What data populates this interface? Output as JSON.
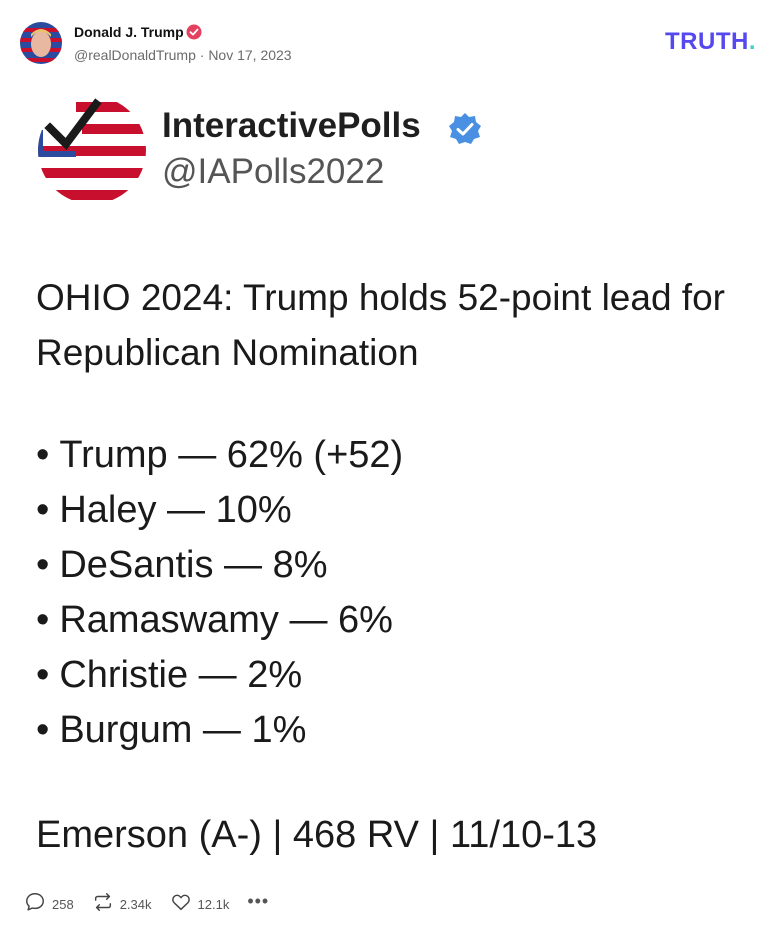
{
  "post": {
    "author_name": "Donald J. Trump",
    "handle": "@realDonaldTrump",
    "separator": "·",
    "date": "Nov 17, 2023",
    "brand": "TRUTH",
    "brand_dot": "."
  },
  "embedded": {
    "account_name": "InteractivePolls",
    "account_handle": "@IAPolls2022",
    "headline": "OHIO 2024: Trump holds 52-point lead for Republican Nomination",
    "results": [
      "Trump — 62% (+52)",
      "Haley — 10%",
      "DeSantis — 8%",
      "Ramaswamy — 6%",
      "Christie — 2%",
      "Burgum — 1%"
    ],
    "source": "Emerson (A-) | 468 RV | 11/10-13"
  },
  "actions": {
    "replies": "258",
    "retruths": "2.34k",
    "likes": "12.1k",
    "more": "•••"
  },
  "icons": {
    "verified": "verified-badge-icon",
    "reply": "reply-icon",
    "retruth": "retruth-icon",
    "like": "heart-icon",
    "more": "more-icon"
  },
  "colors": {
    "brand": "#5448ee",
    "brand_dot": "#3dd6c4",
    "verified_pink": "#e4405f",
    "verified_blue": "#4a90e2",
    "flag_red": "#c8102e",
    "flag_blue": "#2b4c9e"
  }
}
